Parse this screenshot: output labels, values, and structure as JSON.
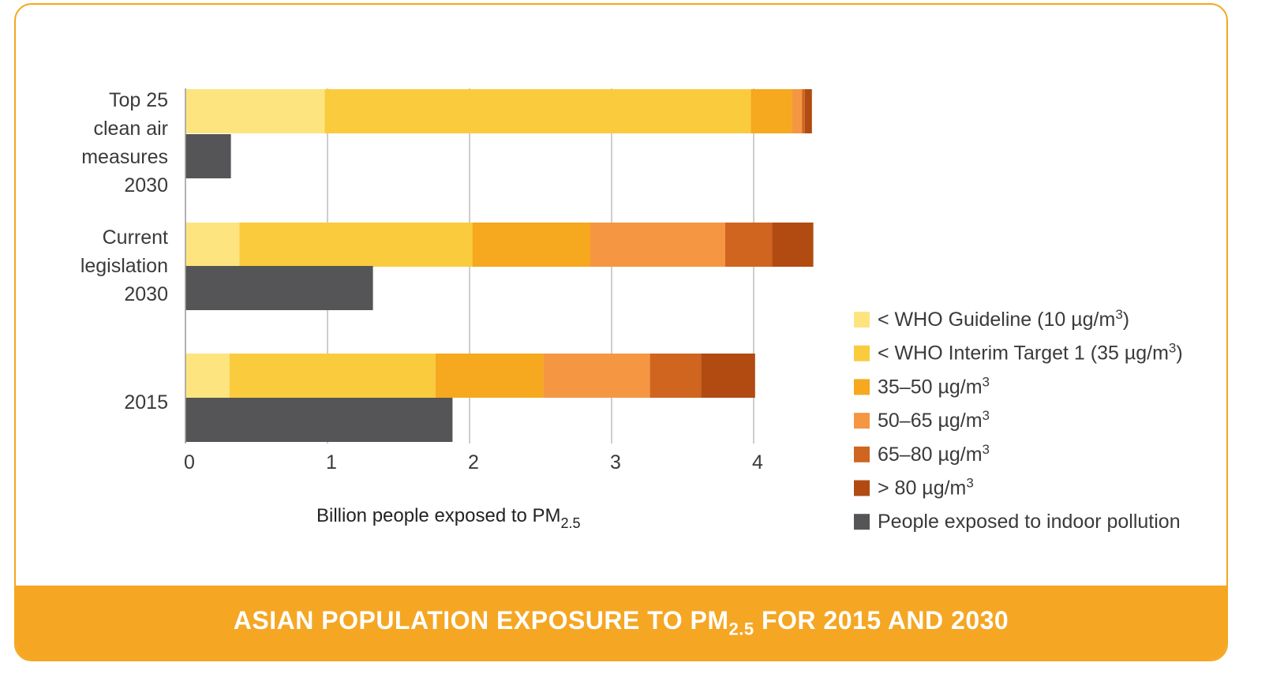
{
  "footer": {
    "title_main": "ASIAN POPULATION EXPOSURE TO PM",
    "title_sub": "2.5",
    "title_end": " FOR 2015 AND 2030"
  },
  "chart_data": {
    "type": "bar",
    "orientation": "horizontal",
    "stacked": true,
    "title": "ASIAN POPULATION EXPOSURE TO PM2.5 FOR 2015 AND 2030",
    "xlabel_main": "Billion people exposed to PM",
    "xlabel_sub": "2.5",
    "xlim": [
      0,
      4.4
    ],
    "xticks": [
      0,
      1,
      2,
      3,
      4
    ],
    "grid": "vertical",
    "legend_position": "right",
    "categories": [
      {
        "lines": [
          "Top 25",
          "clean air",
          "measures",
          "2030"
        ]
      },
      {
        "lines": [
          "Current",
          "legislation",
          "2030"
        ]
      },
      {
        "lines": [
          "2015"
        ]
      }
    ],
    "series": [
      {
        "name": "< WHO Guideline (10 µg/m",
        "sup": "3",
        "suffix": ")",
        "color": "#fde47f",
        "values": [
          0.98,
          0.38,
          0.31
        ]
      },
      {
        "name": "< WHO Interim Target 1 (35 µg/m",
        "sup": "3",
        "suffix": ")",
        "color": "#fbcb3e",
        "values": [
          3.0,
          1.64,
          1.45
        ]
      },
      {
        "name": "35–50 µg/m",
        "sup": "3",
        "suffix": "",
        "color": "#f6a81e",
        "values": [
          0.29,
          0.83,
          0.76
        ]
      },
      {
        "name": "50–65 µg/m",
        "sup": "3",
        "suffix": "",
        "color": "#f59642",
        "values": [
          0.07,
          0.95,
          0.75
        ]
      },
      {
        "name": "65–80 µg/m",
        "sup": "3",
        "suffix": "",
        "color": "#cf651f",
        "values": [
          0.02,
          0.33,
          0.36
        ]
      },
      {
        "name": "> 80 µg/m",
        "sup": "3",
        "suffix": "",
        "color": "#b14b12",
        "values": [
          0.05,
          0.29,
          0.38
        ]
      }
    ],
    "indoor": {
      "name": "People exposed to indoor pollution",
      "color": "#555557",
      "values": [
        0.32,
        1.32,
        1.88
      ]
    }
  }
}
